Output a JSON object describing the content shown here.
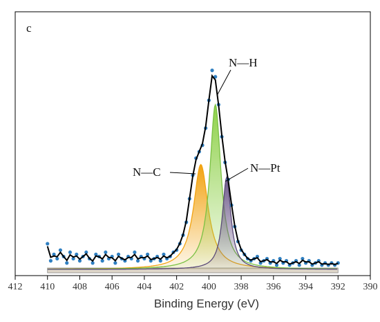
{
  "chart_data": {
    "type": "line",
    "panel_label": "c",
    "xlabel": "Binding Energy (eV)",
    "ylabel": "",
    "xlim": [
      412,
      390
    ],
    "ylim": [
      0,
      1
    ],
    "x_ticks": [
      "412",
      "410",
      "408",
      "406",
      "404",
      "402",
      "400",
      "398",
      "396",
      "394",
      "392",
      "390"
    ],
    "grid": false,
    "annotations": [
      {
        "text": "N—H",
        "points_to_ev": 399.7
      },
      {
        "text": "N—C",
        "points_to_ev": 400.6
      },
      {
        "text": "N—Pt",
        "points_to_ev": 398.9
      }
    ],
    "components": [
      {
        "center": 400.5,
        "height": 0.49,
        "width": 0.55,
        "fill": "#f2a312",
        "line": "#f2a312"
      },
      {
        "center": 399.6,
        "height": 0.77,
        "width": 0.42,
        "fill": "#8fd14a",
        "line": "#7ac143"
      },
      {
        "center": 398.9,
        "height": 0.43,
        "width": 0.32,
        "fill": "#6e5a8a",
        "line": "#5b4a78"
      }
    ],
    "envelope_color": "#000000",
    "baseline_fill": "#ddd5c8",
    "marker_color": "#2f7fc1",
    "scatter": {
      "x": [
        410.0,
        409.8,
        409.6,
        409.4,
        409.2,
        409.0,
        408.8,
        408.6,
        408.4,
        408.2,
        408.0,
        407.8,
        407.6,
        407.4,
        407.2,
        407.0,
        406.8,
        406.6,
        406.4,
        406.2,
        406.0,
        405.8,
        405.6,
        405.4,
        405.2,
        405.0,
        404.8,
        404.6,
        404.4,
        404.2,
        404.0,
        403.8,
        403.6,
        403.4,
        403.2,
        403.0,
        402.8,
        402.6,
        402.4,
        402.2,
        402.0,
        401.8,
        401.6,
        401.4,
        401.2,
        401.0,
        400.8,
        400.6,
        400.4,
        400.2,
        400.0,
        399.8,
        399.6,
        399.4,
        399.2,
        399.0,
        398.8,
        398.6,
        398.4,
        398.2,
        398.0,
        397.8,
        397.6,
        397.4,
        397.2,
        397.0,
        396.8,
        396.6,
        396.4,
        396.2,
        396.0,
        395.8,
        395.6,
        395.4,
        395.2,
        395.0,
        394.8,
        394.6,
        394.4,
        394.2,
        394.0,
        393.8,
        393.6,
        393.4,
        393.2,
        393.0,
        392.8,
        392.6,
        392.4,
        392.2,
        392.0
      ],
      "y": [
        0.12,
        0.04,
        0.07,
        0.05,
        0.09,
        0.06,
        0.03,
        0.08,
        0.05,
        0.07,
        0.04,
        0.06,
        0.08,
        0.05,
        0.03,
        0.07,
        0.06,
        0.04,
        0.08,
        0.05,
        0.06,
        0.03,
        0.07,
        0.05,
        0.04,
        0.06,
        0.05,
        0.08,
        0.04,
        0.06,
        0.05,
        0.07,
        0.04,
        0.05,
        0.06,
        0.04,
        0.07,
        0.05,
        0.06,
        0.08,
        0.09,
        0.12,
        0.16,
        0.22,
        0.33,
        0.44,
        0.52,
        0.55,
        0.58,
        0.66,
        0.79,
        0.93,
        0.9,
        0.77,
        0.62,
        0.5,
        0.42,
        0.3,
        0.2,
        0.13,
        0.09,
        0.07,
        0.05,
        0.04,
        0.05,
        0.06,
        0.03,
        0.04,
        0.05,
        0.03,
        0.04,
        0.02,
        0.05,
        0.03,
        0.04,
        0.02,
        0.03,
        0.04,
        0.02,
        0.05,
        0.03,
        0.04,
        0.02,
        0.03,
        0.04,
        0.02,
        0.03,
        0.02,
        0.03,
        0.02,
        0.03
      ]
    }
  }
}
